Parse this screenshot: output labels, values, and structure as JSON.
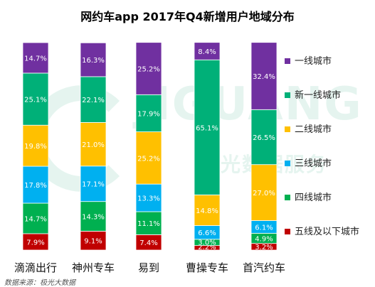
{
  "chart_data": {
    "type": "bar",
    "stacked": true,
    "normalized": true,
    "title": "网约车app 2017年Q4新增用户地域分布",
    "categories": [
      "滴滴出行",
      "神州专车",
      "易到",
      "曹操专车",
      "首汽约车"
    ],
    "series": [
      {
        "name": "五线及以下城市",
        "color": "#c00000",
        "values": [
          7.9,
          9.1,
          7.4,
          2.2,
          3.2
        ]
      },
      {
        "name": "四线城市",
        "color": "#00b050",
        "values": [
          14.7,
          14.3,
          11.1,
          3.0,
          4.9
        ]
      },
      {
        "name": "三线城市",
        "color": "#00b0f0",
        "values": [
          17.8,
          17.1,
          13.3,
          6.6,
          6.1
        ]
      },
      {
        "name": "二线城市",
        "color": "#ffc000",
        "values": [
          19.8,
          21.0,
          25.2,
          14.8,
          27.0
        ]
      },
      {
        "name": "新一线城市",
        "color": "#00b078",
        "values": [
          25.1,
          22.1,
          17.9,
          65.1,
          26.5
        ]
      },
      {
        "name": "一线城市",
        "color": "#7030a0",
        "values": [
          14.7,
          16.3,
          25.2,
          8.4,
          32.4
        ]
      }
    ],
    "legend_order": [
      "一线城市",
      "新一线城市",
      "二线城市",
      "三线城市",
      "四线城市",
      "五线及以下城市"
    ],
    "legend_position": "right",
    "value_suffix": "%",
    "ylim": [
      0,
      100
    ]
  },
  "watermark": {
    "text": "JIGUANG",
    "subtext": "极光数据服务"
  },
  "source": "数据来源：极光大数据"
}
